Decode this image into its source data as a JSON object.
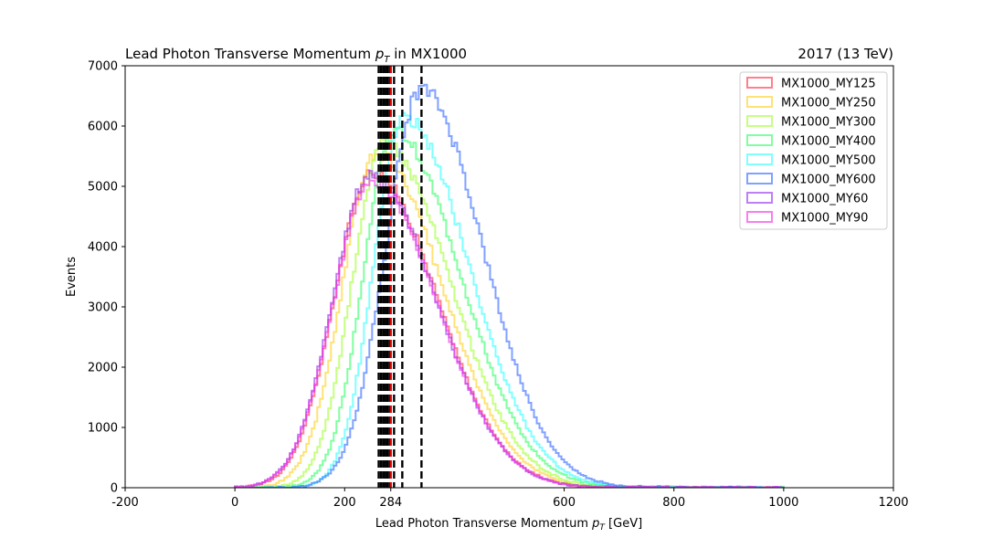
{
  "chart_data": {
    "type": "histogram",
    "title_prefix": "Lead Photon Transverse Momentum ",
    "title_symbol": "p",
    "title_sub": "T",
    "title_suffix": " in MX1000",
    "right_title": "2017 (13 TeV)",
    "xlabel_prefix": "Lead Photon Transverse Momentum ",
    "xlabel_symbol": "p",
    "xlabel_sub": "T",
    "xlabel_suffix": " [GeV]",
    "ylabel": "Events",
    "xlim": [
      -200,
      1200
    ],
    "ylim": [
      0,
      7000
    ],
    "x_ticks": [
      "-200",
      "0",
      "200",
      "284",
      "600",
      "800",
      "1000",
      "1200"
    ],
    "x_tick_values": [
      -200,
      0,
      200,
      284,
      600,
      800,
      1000,
      1200
    ],
    "y_ticks": [
      "0",
      "1000",
      "2000",
      "3000",
      "4000",
      "5000",
      "6000",
      "7000"
    ],
    "y_tick_values": [
      0,
      1000,
      2000,
      3000,
      4000,
      5000,
      6000,
      7000
    ],
    "legend_position": "upper-right",
    "vertical_lines": {
      "black_dashed": [
        262,
        266,
        270,
        274,
        278,
        282,
        290,
        305,
        340
      ],
      "red_dashed": [
        284
      ]
    },
    "series": [
      {
        "name": "MX1000_MY125",
        "color": "#ff3c50",
        "peak_x": 250,
        "peak_y": 5250,
        "sigma_left": 68,
        "sigma_right": 118,
        "start": 0,
        "end": 1000
      },
      {
        "name": "MX1000_MY250",
        "color": "#ffd22d",
        "peak_x": 258,
        "peak_y": 5550,
        "sigma_left": 62,
        "sigma_right": 120,
        "start": 5,
        "end": 1000
      },
      {
        "name": "MX1000_MY300",
        "color": "#a6ff3c",
        "peak_x": 272,
        "peak_y": 5700,
        "sigma_left": 58,
        "sigma_right": 120,
        "start": 10,
        "end": 1000
      },
      {
        "name": "MX1000_MY400",
        "color": "#3cff6e",
        "peak_x": 290,
        "peak_y": 5900,
        "sigma_left": 56,
        "sigma_right": 120,
        "start": 15,
        "end": 1000
      },
      {
        "name": "MX1000_MY500",
        "color": "#3cffff",
        "peak_x": 308,
        "peak_y": 6150,
        "sigma_left": 55,
        "sigma_right": 118,
        "start": 20,
        "end": 1000
      },
      {
        "name": "MX1000_MY600",
        "color": "#3c6eff",
        "peak_x": 340,
        "peak_y": 6600,
        "sigma_left": 65,
        "sigma_right": 112,
        "start": 25,
        "end": 1000
      },
      {
        "name": "MX1000_MY60",
        "color": "#9a3cf0",
        "peak_x": 248,
        "peak_y": 5200,
        "sigma_left": 69,
        "sigma_right": 118,
        "start": 0,
        "end": 1000
      },
      {
        "name": "MX1000_MY90",
        "color": "#f03ce6",
        "peak_x": 250,
        "peak_y": 5100,
        "sigma_left": 70,
        "sigma_right": 118,
        "start": 0,
        "end": 1000
      }
    ]
  }
}
